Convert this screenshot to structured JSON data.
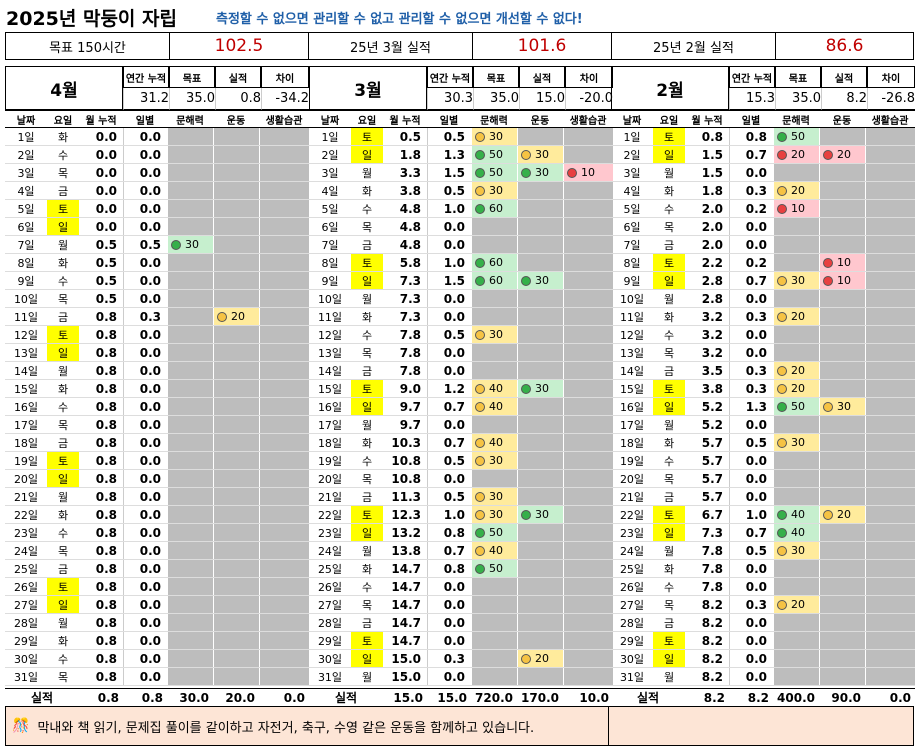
{
  "header": {
    "title": "2025년 막둥이 자립",
    "subtitle": "측정할 수 없으면 관리할 수 없고 관리할 수 없으면 개선할 수 없다!"
  },
  "summary": {
    "goal_label": "목표 150시간",
    "goal_value": "102.5",
    "mar_label": "25년 3월 실적",
    "mar_value": "101.6",
    "feb_label": "25년 2월 실적",
    "feb_value": "86.6"
  },
  "col_headers": {
    "annual": "연간 누적",
    "target": "목표",
    "actual": "실적",
    "diff": "차이",
    "date": "날짜",
    "weekday": "요일",
    "month_acc": "월 누적",
    "daily": "일별",
    "literacy": "문해력",
    "exercise": "운동",
    "habit": "생활습관",
    "total_label": "실적"
  },
  "colors": {
    "weekend": "#ffff00",
    "good": "#c6efce",
    "mid": "#ffeb9c",
    "bad": "#ffc7ce"
  },
  "months": [
    {
      "name": "4월",
      "annual": "31.2",
      "target": "35.0",
      "actual": "0.8",
      "diff": "-34.2",
      "rows": [
        [
          "1일",
          "화",
          "0.0",
          "0.0",
          "",
          "",
          ""
        ],
        [
          "2일",
          "수",
          "0.0",
          "0.0",
          "",
          "",
          ""
        ],
        [
          "3일",
          "목",
          "0.0",
          "0.0",
          "",
          "",
          ""
        ],
        [
          "4일",
          "금",
          "0.0",
          "0.0",
          "",
          "",
          ""
        ],
        [
          "5일",
          "토",
          "0.0",
          "0.0",
          "",
          "",
          ""
        ],
        [
          "6일",
          "일",
          "0.0",
          "0.0",
          "",
          "",
          ""
        ],
        [
          "7일",
          "월",
          "0.5",
          "0.5",
          "g30",
          "",
          ""
        ],
        [
          "8일",
          "화",
          "0.5",
          "0.0",
          "",
          "",
          ""
        ],
        [
          "9일",
          "수",
          "0.5",
          "0.0",
          "",
          "",
          ""
        ],
        [
          "10일",
          "목",
          "0.5",
          "0.0",
          "",
          "",
          ""
        ],
        [
          "11일",
          "금",
          "0.8",
          "0.3",
          "",
          "y20",
          ""
        ],
        [
          "12일",
          "토",
          "0.8",
          "0.0",
          "",
          "",
          ""
        ],
        [
          "13일",
          "일",
          "0.8",
          "0.0",
          "",
          "",
          ""
        ],
        [
          "14일",
          "월",
          "0.8",
          "0.0",
          "",
          "",
          ""
        ],
        [
          "15일",
          "화",
          "0.8",
          "0.0",
          "",
          "",
          ""
        ],
        [
          "16일",
          "수",
          "0.8",
          "0.0",
          "",
          "",
          ""
        ],
        [
          "17일",
          "목",
          "0.8",
          "0.0",
          "",
          "",
          ""
        ],
        [
          "18일",
          "금",
          "0.8",
          "0.0",
          "",
          "",
          ""
        ],
        [
          "19일",
          "토",
          "0.8",
          "0.0",
          "",
          "",
          ""
        ],
        [
          "20일",
          "일",
          "0.8",
          "0.0",
          "",
          "",
          ""
        ],
        [
          "21일",
          "월",
          "0.8",
          "0.0",
          "",
          "",
          ""
        ],
        [
          "22일",
          "화",
          "0.8",
          "0.0",
          "",
          "",
          ""
        ],
        [
          "23일",
          "수",
          "0.8",
          "0.0",
          "",
          "",
          ""
        ],
        [
          "24일",
          "목",
          "0.8",
          "0.0",
          "",
          "",
          ""
        ],
        [
          "25일",
          "금",
          "0.8",
          "0.0",
          "",
          "",
          ""
        ],
        [
          "26일",
          "토",
          "0.8",
          "0.0",
          "",
          "",
          ""
        ],
        [
          "27일",
          "일",
          "0.8",
          "0.0",
          "",
          "",
          ""
        ],
        [
          "28일",
          "월",
          "0.8",
          "0.0",
          "",
          "",
          ""
        ],
        [
          "29일",
          "화",
          "0.8",
          "0.0",
          "",
          "",
          ""
        ],
        [
          "30일",
          "수",
          "0.8",
          "0.0",
          "",
          "",
          ""
        ],
        [
          "31일",
          "목",
          "0.8",
          "0.0",
          "",
          "",
          ""
        ]
      ],
      "totals": [
        "0.8",
        "0.8",
        "30.0",
        "20.0",
        "0.0"
      ]
    },
    {
      "name": "3월",
      "annual": "30.3",
      "target": "35.0",
      "actual": "15.0",
      "diff": "-20.0",
      "rows": [
        [
          "1일",
          "토",
          "0.5",
          "0.5",
          "y30",
          "",
          ""
        ],
        [
          "2일",
          "일",
          "1.8",
          "1.3",
          "g50",
          "y30",
          ""
        ],
        [
          "3일",
          "월",
          "3.3",
          "1.5",
          "g50",
          "g30",
          "r10"
        ],
        [
          "4일",
          "화",
          "3.8",
          "0.5",
          "y30",
          "",
          ""
        ],
        [
          "5일",
          "수",
          "4.8",
          "1.0",
          "g60",
          "",
          ""
        ],
        [
          "6일",
          "목",
          "4.8",
          "0.0",
          "",
          "",
          ""
        ],
        [
          "7일",
          "금",
          "4.8",
          "0.0",
          "",
          "",
          ""
        ],
        [
          "8일",
          "토",
          "5.8",
          "1.0",
          "g60",
          "",
          ""
        ],
        [
          "9일",
          "일",
          "7.3",
          "1.5",
          "g60",
          "g30",
          ""
        ],
        [
          "10일",
          "월",
          "7.3",
          "0.0",
          "",
          "",
          ""
        ],
        [
          "11일",
          "화",
          "7.3",
          "0.0",
          "",
          "",
          ""
        ],
        [
          "12일",
          "수",
          "7.8",
          "0.5",
          "y30",
          "",
          ""
        ],
        [
          "13일",
          "목",
          "7.8",
          "0.0",
          "",
          "",
          ""
        ],
        [
          "14일",
          "금",
          "7.8",
          "0.0",
          "",
          "",
          ""
        ],
        [
          "15일",
          "토",
          "9.0",
          "1.2",
          "y40",
          "g30",
          ""
        ],
        [
          "16일",
          "일",
          "9.7",
          "0.7",
          "y40",
          "",
          ""
        ],
        [
          "17일",
          "월",
          "9.7",
          "0.0",
          "",
          "",
          ""
        ],
        [
          "18일",
          "화",
          "10.3",
          "0.7",
          "y40",
          "",
          ""
        ],
        [
          "19일",
          "수",
          "10.8",
          "0.5",
          "y30",
          "",
          ""
        ],
        [
          "20일",
          "목",
          "10.8",
          "0.0",
          "",
          "",
          ""
        ],
        [
          "21일",
          "금",
          "11.3",
          "0.5",
          "y30",
          "",
          ""
        ],
        [
          "22일",
          "토",
          "12.3",
          "1.0",
          "y30",
          "g30",
          ""
        ],
        [
          "23일",
          "일",
          "13.2",
          "0.8",
          "g50",
          "",
          ""
        ],
        [
          "24일",
          "월",
          "13.8",
          "0.7",
          "y40",
          "",
          ""
        ],
        [
          "25일",
          "화",
          "14.7",
          "0.8",
          "g50",
          "",
          ""
        ],
        [
          "26일",
          "수",
          "14.7",
          "0.0",
          "",
          "",
          ""
        ],
        [
          "27일",
          "목",
          "14.7",
          "0.0",
          "",
          "",
          ""
        ],
        [
          "28일",
          "금",
          "14.7",
          "0.0",
          "",
          "",
          ""
        ],
        [
          "29일",
          "토",
          "14.7",
          "0.0",
          "",
          "",
          ""
        ],
        [
          "30일",
          "일",
          "15.0",
          "0.3",
          "",
          "y20",
          ""
        ],
        [
          "31일",
          "월",
          "15.0",
          "0.0",
          "",
          "",
          ""
        ]
      ],
      "totals": [
        "15.0",
        "15.0",
        "720.0",
        "170.0",
        "10.0"
      ]
    },
    {
      "name": "2월",
      "annual": "15.3",
      "target": "35.0",
      "actual": "8.2",
      "diff": "-26.8",
      "rows": [
        [
          "1일",
          "토",
          "0.8",
          "0.8",
          "g50",
          "",
          ""
        ],
        [
          "2일",
          "일",
          "1.5",
          "0.7",
          "r20",
          "r20",
          ""
        ],
        [
          "3일",
          "월",
          "1.5",
          "0.0",
          "",
          "",
          ""
        ],
        [
          "4일",
          "화",
          "1.8",
          "0.3",
          "y20",
          "",
          ""
        ],
        [
          "5일",
          "수",
          "2.0",
          "0.2",
          "r10",
          "",
          ""
        ],
        [
          "6일",
          "목",
          "2.0",
          "0.0",
          "",
          "",
          ""
        ],
        [
          "7일",
          "금",
          "2.0",
          "0.0",
          "",
          "",
          ""
        ],
        [
          "8일",
          "토",
          "2.2",
          "0.2",
          "",
          "r10",
          ""
        ],
        [
          "9일",
          "일",
          "2.8",
          "0.7",
          "y30",
          "r10",
          ""
        ],
        [
          "10일",
          "월",
          "2.8",
          "0.0",
          "",
          "",
          ""
        ],
        [
          "11일",
          "화",
          "3.2",
          "0.3",
          "y20",
          "",
          ""
        ],
        [
          "12일",
          "수",
          "3.2",
          "0.0",
          "",
          "",
          ""
        ],
        [
          "13일",
          "목",
          "3.2",
          "0.0",
          "",
          "",
          ""
        ],
        [
          "14일",
          "금",
          "3.5",
          "0.3",
          "y20",
          "",
          ""
        ],
        [
          "15일",
          "토",
          "3.8",
          "0.3",
          "y20",
          "",
          ""
        ],
        [
          "16일",
          "일",
          "5.2",
          "1.3",
          "g50",
          "y30",
          ""
        ],
        [
          "17일",
          "월",
          "5.2",
          "0.0",
          "",
          "",
          ""
        ],
        [
          "18일",
          "화",
          "5.7",
          "0.5",
          "y30",
          "",
          ""
        ],
        [
          "19일",
          "수",
          "5.7",
          "0.0",
          "",
          "",
          ""
        ],
        [
          "20일",
          "목",
          "5.7",
          "0.0",
          "",
          "",
          ""
        ],
        [
          "21일",
          "금",
          "5.7",
          "0.0",
          "",
          "",
          ""
        ],
        [
          "22일",
          "토",
          "6.7",
          "1.0",
          "g40",
          "y20",
          ""
        ],
        [
          "23일",
          "일",
          "7.3",
          "0.7",
          "g40",
          "",
          ""
        ],
        [
          "24일",
          "월",
          "7.8",
          "0.5",
          "y30",
          "",
          ""
        ],
        [
          "25일",
          "화",
          "7.8",
          "0.0",
          "",
          "",
          ""
        ],
        [
          "26일",
          "수",
          "7.8",
          "0.0",
          "",
          "",
          ""
        ],
        [
          "27일",
          "목",
          "8.2",
          "0.3",
          "y20",
          "",
          ""
        ],
        [
          "28일",
          "금",
          "8.2",
          "0.0",
          "",
          "",
          ""
        ],
        [
          "29일",
          "토",
          "8.2",
          "0.0",
          "",
          "",
          ""
        ],
        [
          "30일",
          "일",
          "8.2",
          "0.0",
          "",
          "",
          ""
        ],
        [
          "31일",
          "월",
          "8.2",
          "0.0",
          "",
          "",
          ""
        ]
      ],
      "totals": [
        "8.2",
        "8.2",
        "400.0",
        "90.0",
        "0.0"
      ]
    }
  ],
  "footer": {
    "icon": "party-emoji-icon",
    "text": "막내와 책 읽기, 문제집 풀이를 같이하고 자전거, 축구, 수영 같은 운동을 함께하고 있습니다."
  }
}
